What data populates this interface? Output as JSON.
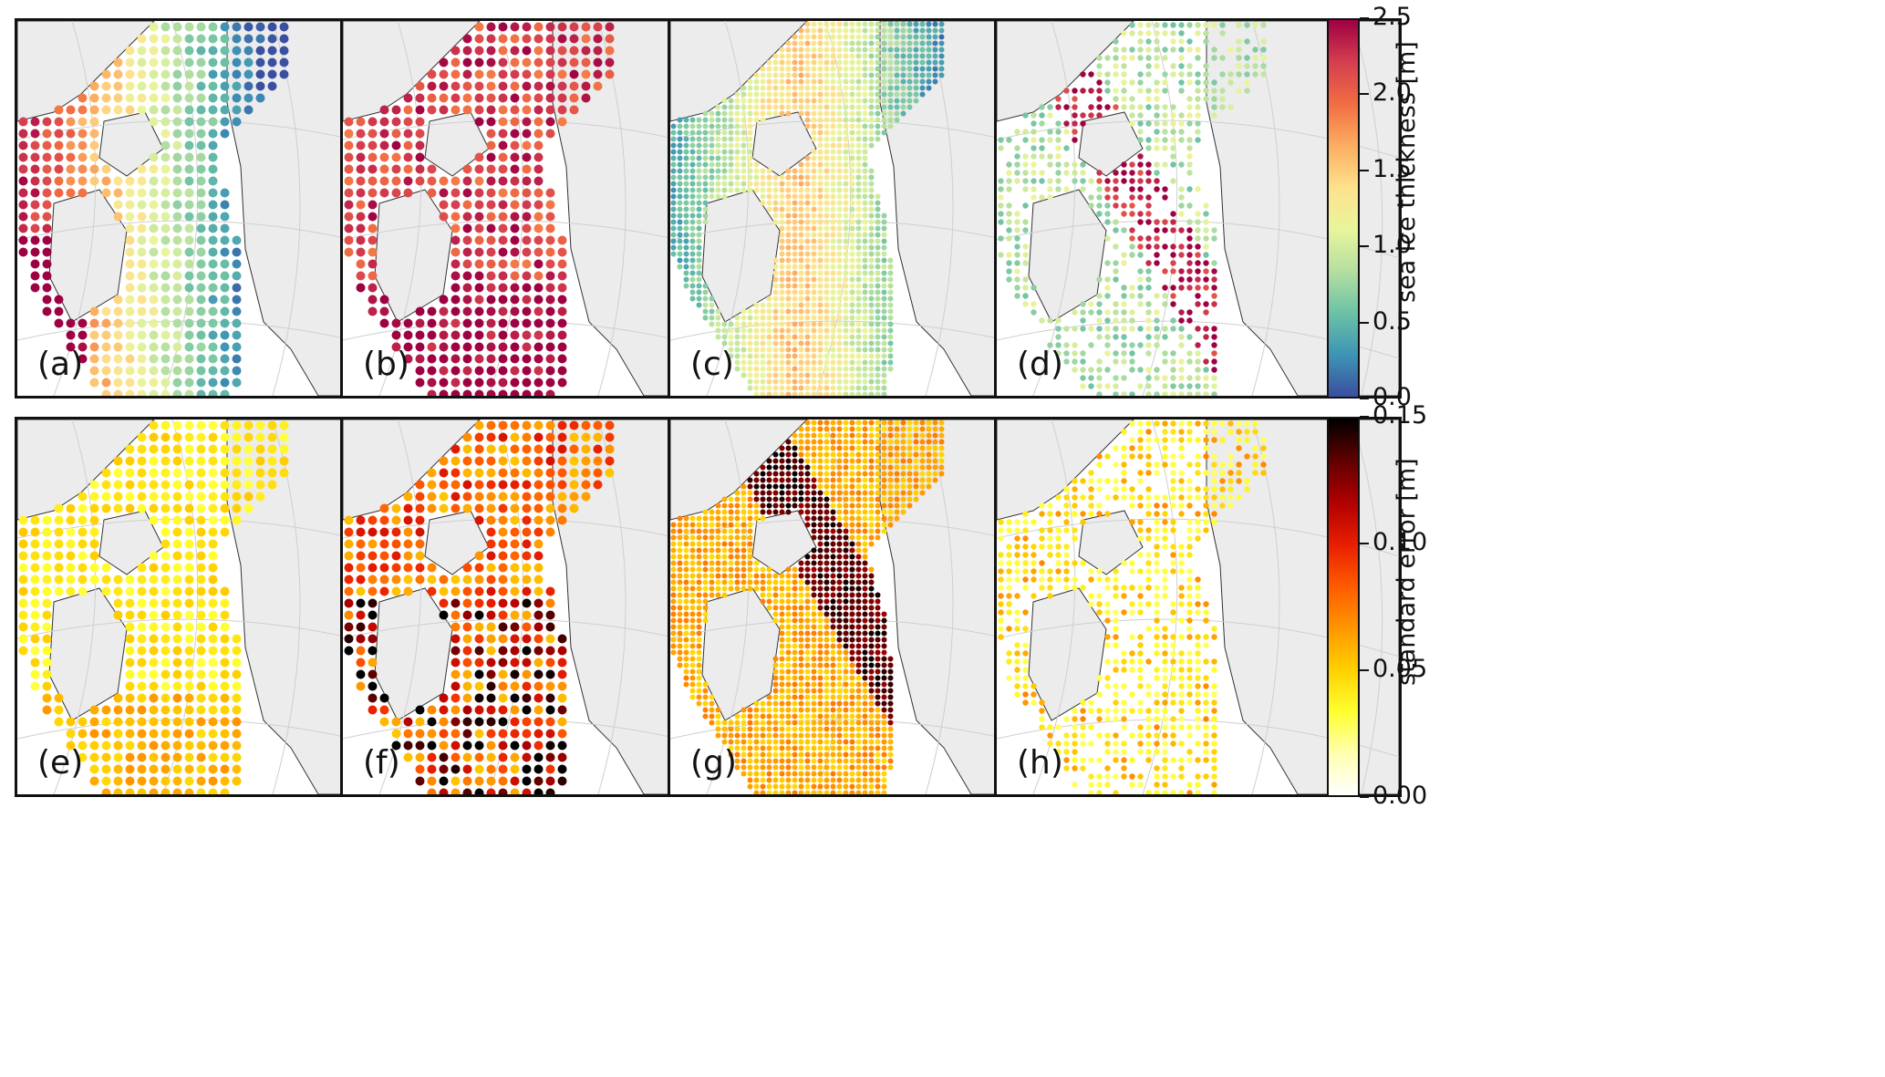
{
  "figure": {
    "rows": [
      {
        "panels": [
          {
            "label": "(a)",
            "style": "coarse",
            "pattern": "a"
          },
          {
            "label": "(b)",
            "style": "coarse",
            "pattern": "b"
          },
          {
            "label": "(c)",
            "style": "fine",
            "pattern": "c"
          },
          {
            "label": "(d)",
            "style": "sparse",
            "pattern": "d"
          }
        ],
        "colorbar": {
          "label": "sea ice thickness [m]",
          "ticks": [
            "0.0",
            "0.5",
            "1.0",
            "1.5",
            "2.0",
            "2.5"
          ],
          "tick_values": [
            0.0,
            0.5,
            1.0,
            1.5,
            2.0,
            2.5
          ],
          "range": [
            0.0,
            2.5
          ],
          "colormap": "Spectral_r",
          "stops": [
            "#3b4fa0",
            "#3d94b6",
            "#6cc2a5",
            "#b4dfa0",
            "#e9f59c",
            "#fee18c",
            "#fcad60",
            "#f16d43",
            "#d53e4f",
            "#9e0142"
          ]
        }
      },
      {
        "panels": [
          {
            "label": "(e)",
            "style": "coarse",
            "pattern": "e"
          },
          {
            "label": "(f)",
            "style": "coarse",
            "pattern": "f"
          },
          {
            "label": "(g)",
            "style": "fine",
            "pattern": "g"
          },
          {
            "label": "(h)",
            "style": "sparse",
            "pattern": "h"
          }
        ],
        "colorbar": {
          "label": "standard error [m]",
          "ticks": [
            "0.00",
            "0.05",
            "0.10",
            "0.15"
          ],
          "tick_values": [
            0.0,
            0.05,
            0.1,
            0.15
          ],
          "range": [
            0.0,
            0.15
          ],
          "colormap": "hot_r",
          "stops": [
            "#ffffff",
            "#ffffb0",
            "#ffff30",
            "#ffd000",
            "#ff9600",
            "#ff5a00",
            "#e81e00",
            "#b00000",
            "#600000",
            "#000000"
          ]
        }
      }
    ],
    "colors": {
      "land": "#ececec",
      "land_edge": "#333333",
      "ocean": "#ffffff",
      "graticule": "#cfcfcf",
      "frame": "#111111"
    }
  }
}
